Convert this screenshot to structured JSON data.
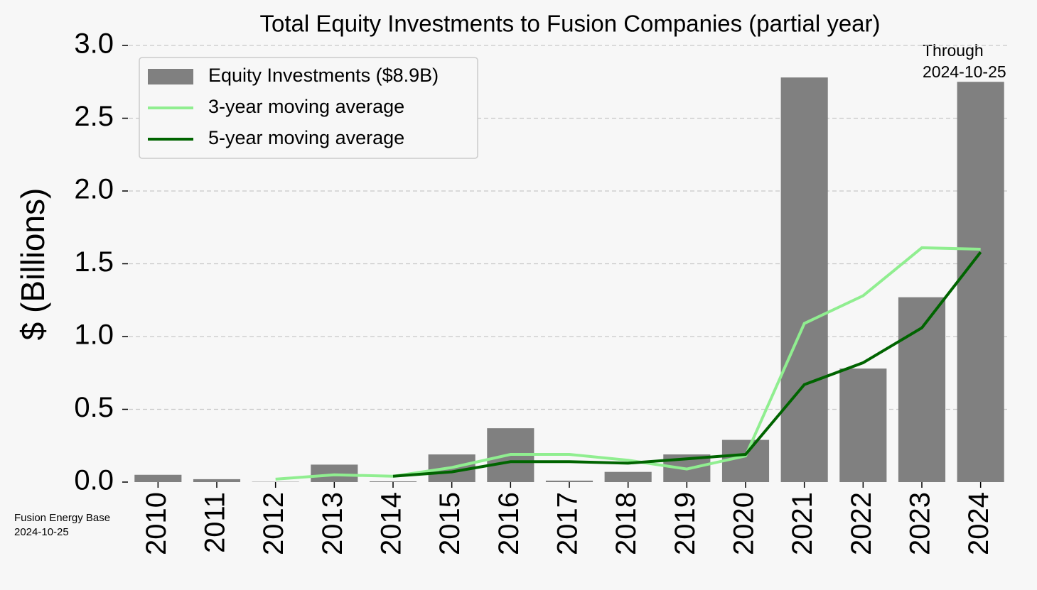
{
  "chart_data": {
    "type": "bar",
    "title": "Total Equity Investments to Fusion Companies (partial year)",
    "y_label": "$ (Billions)",
    "categories": [
      "2010",
      "2011",
      "2012",
      "2013",
      "2014",
      "2015",
      "2016",
      "2017",
      "2018",
      "2019",
      "2020",
      "2021",
      "2022",
      "2023",
      "2024"
    ],
    "series": [
      {
        "name": "Equity Investments ($8.9B)",
        "type": "bar",
        "color": "#808080",
        "values": [
          0.05,
          0.02,
          0.002,
          0.12,
          0.005,
          0.19,
          0.37,
          0.01,
          0.07,
          0.19,
          0.29,
          2.78,
          0.78,
          1.27,
          2.75
        ]
      },
      {
        "name": "3-year moving average",
        "type": "line",
        "color": "#90ee90",
        "values": [
          null,
          null,
          0.02,
          0.05,
          0.04,
          0.1,
          0.19,
          0.19,
          0.15,
          0.09,
          0.18,
          1.09,
          1.28,
          1.61,
          1.6
        ]
      },
      {
        "name": "5-year moving average",
        "type": "line",
        "color": "#006400",
        "values": [
          null,
          null,
          null,
          null,
          0.04,
          0.07,
          0.14,
          0.14,
          0.13,
          0.16,
          0.19,
          0.67,
          0.82,
          1.06,
          1.58
        ]
      }
    ],
    "ylim": [
      0,
      3.0
    ],
    "yticks": [
      {
        "value": 0,
        "label": "0.0"
      },
      {
        "value": 0.5,
        "label": "0.5"
      },
      {
        "value": 1,
        "label": "1.0"
      },
      {
        "value": 1.5,
        "label": "1.5"
      },
      {
        "value": 2,
        "label": "2.0"
      },
      {
        "value": 2.5,
        "label": "2.5"
      },
      {
        "value": 3,
        "label": "3.0"
      }
    ],
    "grid": true,
    "legend": "upper left",
    "annotation": [
      "Through",
      "2024-10-25"
    ],
    "source": [
      "Fusion Energy Base",
      "2024-10-25"
    ]
  }
}
